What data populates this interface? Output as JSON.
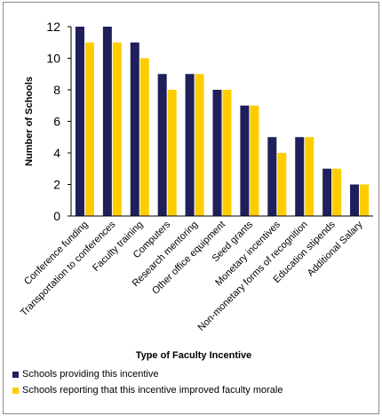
{
  "chart_data": {
    "type": "bar",
    "title": "",
    "xlabel": "Type of Faculty Incentive",
    "ylabel": "Number of Schools",
    "ylim": [
      0,
      12
    ],
    "yticks": [
      "0",
      "2",
      "4",
      "6",
      "8",
      "10",
      "12"
    ],
    "grid": false,
    "legend_position": "bottom",
    "categories": [
      "Conference funding",
      "Transportation to conferences",
      "Faculty training",
      "Computers",
      "Research mentoring",
      "Other office equipment",
      "Seed grants",
      "Monetary incentives",
      "Non-monetary forms of recognition",
      "Education stipends",
      "Additional Salary"
    ],
    "series": [
      {
        "name": "Schools providing this incentive",
        "color": "#1f1f5c",
        "values": [
          12,
          12,
          11,
          9,
          9,
          8,
          7,
          5,
          5,
          3,
          2
        ]
      },
      {
        "name": "Schools reporting that this incentive improved faculty morale",
        "color": "#ffcc00",
        "values": [
          11,
          11,
          10,
          8,
          9,
          8,
          7,
          4,
          5,
          3,
          2
        ]
      }
    ]
  }
}
